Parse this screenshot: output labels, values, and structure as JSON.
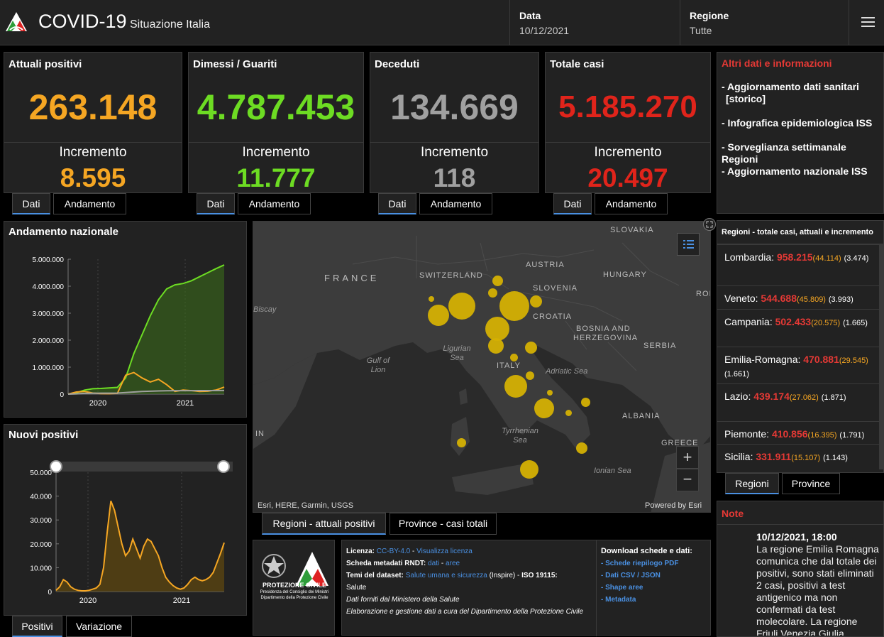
{
  "header": {
    "title": "COVID-19",
    "subtitle": "Situazione Italia",
    "date_label": "Data",
    "date_value": "10/12/2021",
    "region_label": "Regione",
    "region_value": "Tutte"
  },
  "stats": [
    {
      "title": "Attuali positivi",
      "value": "263.148",
      "inc_label": "Incremento",
      "inc": "8.595",
      "color": "#f5a623"
    },
    {
      "title": "Dimessi / Guariti",
      "value": "4.787.453",
      "inc_label": "Incremento",
      "inc": "11.777",
      "color": "#6ddc23"
    },
    {
      "title": "Deceduti",
      "value": "134.669",
      "inc_label": "Incremento",
      "inc": "118",
      "color": "#a0a0a0"
    },
    {
      "title": "Totale casi",
      "value": "5.185.270",
      "inc_label": "Incremento",
      "inc": "20.497",
      "color": "#e0241b"
    }
  ],
  "stat_tabs": {
    "dati": "Dati",
    "andamento": "Andamento"
  },
  "info": {
    "title": "Altri dati e informazioni",
    "links": [
      "- Aggiornamento dati sanitari",
      "[storico]",
      "- Infografica epidemiologica ISS",
      "- Sorveglianza settimanale Regioni",
      "- Aggiornamento nazionale ISS"
    ]
  },
  "andamento": {
    "title": "Andamento nazionale",
    "chart_data": {
      "type": "line",
      "title": "Andamento nazionale",
      "y_ticks": [
        "5.000.000",
        "4.000.000",
        "3.000.000",
        "2.000.000",
        "1.000.000",
        "0"
      ],
      "x_ticks": [
        "2020",
        "2021"
      ],
      "ylim": [
        0,
        5000000
      ],
      "series": [
        {
          "name": "Dimessi / Guariti",
          "color": "#6ddc23",
          "values": [
            0,
            50000,
            150000,
            200000,
            210000,
            230000,
            250000,
            600000,
            1500000,
            2200000,
            2900000,
            3500000,
            3900000,
            4050000,
            4100000,
            4200000,
            4350000,
            4500000,
            4650000,
            4787453
          ]
        },
        {
          "name": "Attuali positivi",
          "color": "#f5a623",
          "values": [
            0,
            80000,
            100000,
            40000,
            20000,
            15000,
            30000,
            700000,
            800000,
            600000,
            450000,
            550000,
            350000,
            100000,
            150000,
            130000,
            100000,
            110000,
            150000,
            263148
          ]
        },
        {
          "name": "Deceduti",
          "color": "#a0a0a0",
          "values": [
            0,
            10000,
            30000,
            34000,
            35000,
            36000,
            40000,
            60000,
            80000,
            100000,
            110000,
            120000,
            125000,
            127000,
            128000,
            129000,
            130000,
            131000,
            132000,
            134669
          ]
        }
      ]
    }
  },
  "nuovi": {
    "title": "Nuovi positivi",
    "chart_data": {
      "type": "area",
      "title": "Nuovi positivi",
      "y_ticks": [
        "50.000",
        "40.000",
        "30.000",
        "20.000",
        "10.000",
        "0"
      ],
      "x_ticks": [
        "2020",
        "2021"
      ],
      "ylim": [
        0,
        50000
      ],
      "values": [
        500,
        2000,
        5000,
        4000,
        2000,
        1000,
        500,
        300,
        300,
        500,
        1000,
        1500,
        3000,
        10000,
        25000,
        38000,
        34000,
        27000,
        20000,
        15000,
        17000,
        22000,
        18000,
        14000,
        19000,
        22000,
        21000,
        18000,
        15000,
        10000,
        6000,
        4000,
        2500,
        1500,
        1000,
        1500,
        3000,
        5000,
        6000,
        5000,
        4500,
        5000,
        6000,
        8000,
        12000,
        16000,
        20497
      ]
    }
  },
  "bottom_tabs": {
    "positivi": "Positivi",
    "variazione": "Variazione"
  },
  "map": {
    "labels": [
      "FRANCE",
      "SWITZERLAND",
      "AUSTRIA",
      "SLOVAKIA",
      "HUNGARY",
      "SLOVENIA",
      "CROATIA",
      "BOSNIA AND",
      "HERZEGOVINA",
      "SERBIA",
      "ITALY",
      "ALBANIA",
      "GREECE",
      "ROI",
      "IN"
    ],
    "seas": [
      "Ligurian Sea",
      "Gulf of Lion",
      "Adriatic Sea",
      "Tyrrhenian Sea",
      "Ionian Sea",
      "Biscay"
    ],
    "attribution": "Esri, HERE, Garmin, USGS",
    "powered": "Powered by Esri",
    "tab_regioni": "Regioni - attuali positivi",
    "tab_province": "Province - casi totali"
  },
  "regioni": {
    "title": "Regioni - totale casi, attuali e incremento",
    "rows": [
      {
        "name": "Lombardia:",
        "tot": "958.215",
        "att": "(44.114)",
        "inc": "(3.474)"
      },
      {
        "name": "Veneto:",
        "tot": "544.688",
        "att": "(45.809)",
        "inc": "(3.993)"
      },
      {
        "name": "Campania:",
        "tot": "502.433",
        "att": "(20.575)",
        "inc": "(1.665)"
      },
      {
        "name": "Emilia-Romagna:",
        "tot": "470.881",
        "att": "(29.545)",
        "inc": "(1.661)"
      },
      {
        "name": "Lazio:",
        "tot": "439.174",
        "att": "(27.062)",
        "inc": "(1.871)"
      },
      {
        "name": "Piemonte:",
        "tot": "410.856",
        "att": "(16.395)",
        "inc": "(1.791)"
      },
      {
        "name": "Sicilia:",
        "tot": "331.911",
        "att": "(15.107)",
        "inc": "(1.143)"
      }
    ],
    "tab_regioni": "Regioni",
    "tab_province": "Province"
  },
  "note": {
    "title": "Note",
    "date": "10/12/2021, 18:00",
    "text": "La regione Emilia Romagna comunica che dal totale dei positivi, sono stati eliminati 2 casi, positivi a test antigenico ma non confermati da test molecolare. La regione Friuli Venezia Giulia"
  },
  "footer": {
    "logo_text1": "PROTEZIONE CIVILE",
    "logo_text2": "Presidenza del Consiglio dei Ministri",
    "logo_text3": "Dipartimento della Protezione Civile",
    "licenza_label": "Licenza:",
    "licenza_link1": "CC-BY-4.0",
    "licenza_sep": " - ",
    "licenza_link2": "Visualizza licenza",
    "scheda_label": "Scheda metadati RNDT:",
    "scheda_link1": "dati",
    "scheda_sep": " - ",
    "scheda_link2": "aree",
    "temi_label": "Temi del dataset:",
    "temi_link": "Salute umana e sicurezza",
    "temi_rest": " (Inspire) - ",
    "iso_label": "ISO 19115:",
    "iso_value": "Salute",
    "dati_forniti": "Dati forniti dal Ministero della Salute",
    "elaborazione": "Elaborazione e gestione dati a cura del Dipartimento della Protezione Civile",
    "download_title": "Download schede e dati:",
    "downloads": [
      "- Schede riepilogo PDF",
      "- Dati CSV / JSON",
      "- Shape aree",
      "- Metadata"
    ]
  }
}
